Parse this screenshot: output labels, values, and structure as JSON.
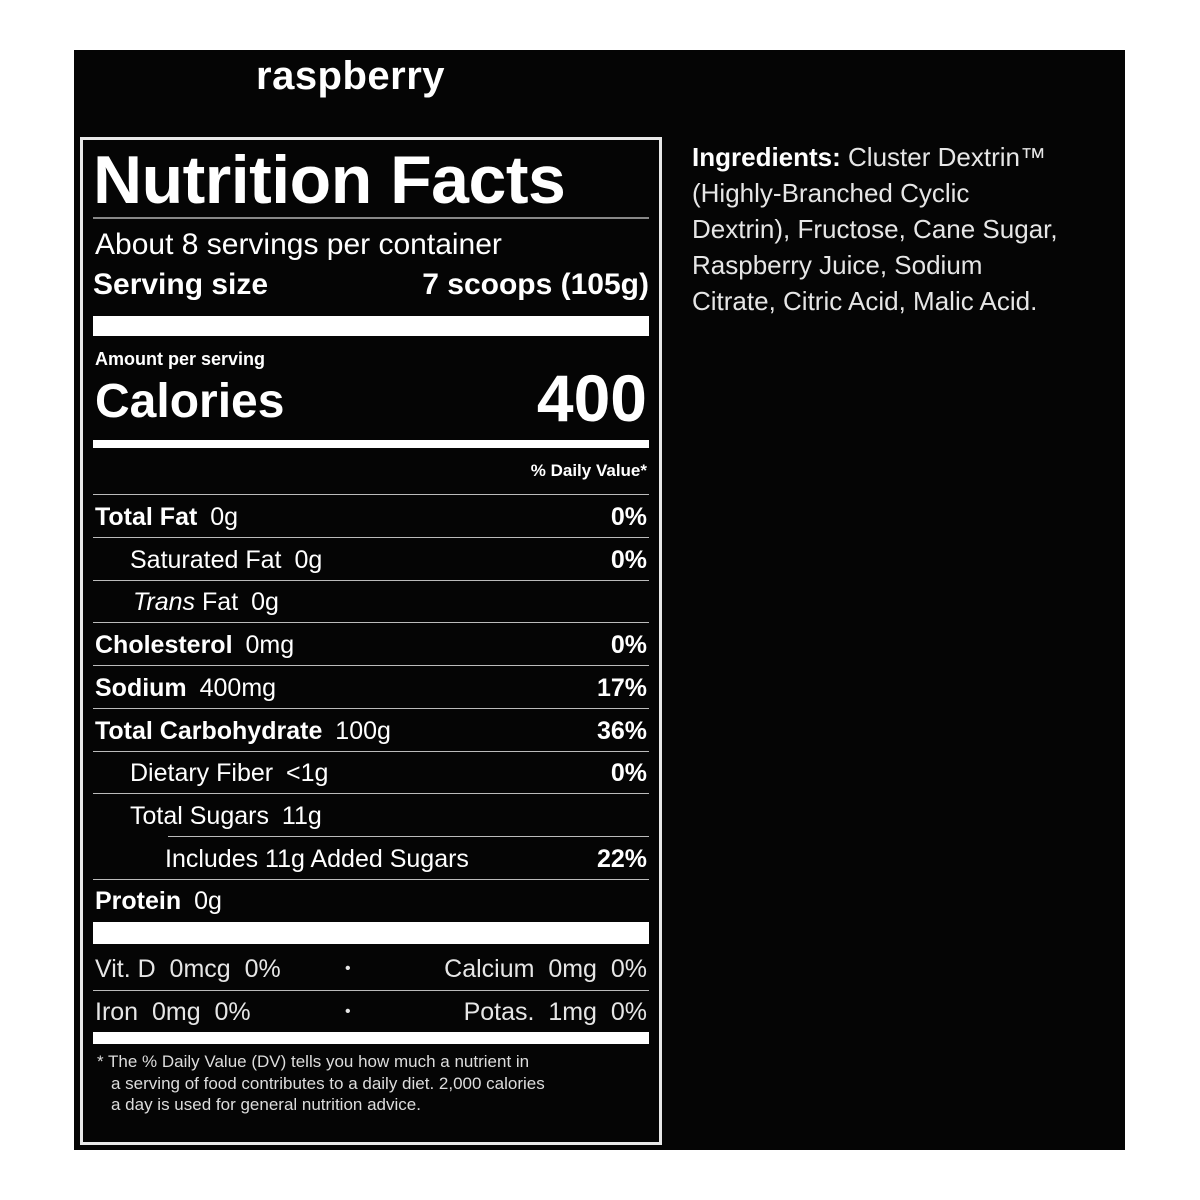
{
  "flavor": "raspberry",
  "label": {
    "title": "Nutrition Facts",
    "servings": "About 8 servings per container",
    "serving_size_label": "Serving size",
    "serving_size_value": "7 scoops (105g)",
    "amount_per_serving": "Amount per serving",
    "calories_label": "Calories",
    "calories_value": "400",
    "dv_header": "% Daily Value*",
    "nutrients": [
      {
        "name": "Total Fat",
        "amount": "0g",
        "dv": "0%"
      },
      {
        "name": "Saturated Fat",
        "amount": "0g",
        "dv": "0%"
      },
      {
        "name": "Trans",
        "name_suffix": "Fat",
        "amount": "0g",
        "dv": ""
      },
      {
        "name": "Cholesterol",
        "amount": "0mg",
        "dv": "0%"
      },
      {
        "name": "Sodium",
        "amount": "400mg",
        "dv": "17%"
      },
      {
        "name": "Total Carbohydrate",
        "amount": "100g",
        "dv": "36%"
      },
      {
        "name": "Dietary Fiber",
        "amount": "<1g",
        "dv": "0%"
      },
      {
        "name": "Total Sugars",
        "amount": "11g",
        "dv": ""
      },
      {
        "name": "Includes 11g Added Sugars",
        "amount": "",
        "dv": "22%"
      },
      {
        "name": "Protein",
        "amount": "0g",
        "dv": ""
      }
    ],
    "vitamins": [
      {
        "left": "Vit. D  0mcg  0%",
        "right": "Calcium  0mg  0%"
      },
      {
        "left": "Iron  0mg  0%",
        "right": "Potas.  1mg  0%"
      }
    ],
    "bullet": "•",
    "footnote": [
      "* The % Daily Value (DV) tells you how much a nutrient in",
      "a serving of food contributes to a daily diet. 2,000 calories",
      "a day is used for general nutrition advice."
    ]
  },
  "ingredients": {
    "heading": "Ingredients:",
    "lines": [
      "Cluster Dextrin™",
      "(Highly-Branched Cyclic",
      "Dextrin), Fructose, Cane Sugar,",
      "Raspberry Juice, Sodium",
      "Citrate, Citric Acid, Malic Acid."
    ]
  }
}
